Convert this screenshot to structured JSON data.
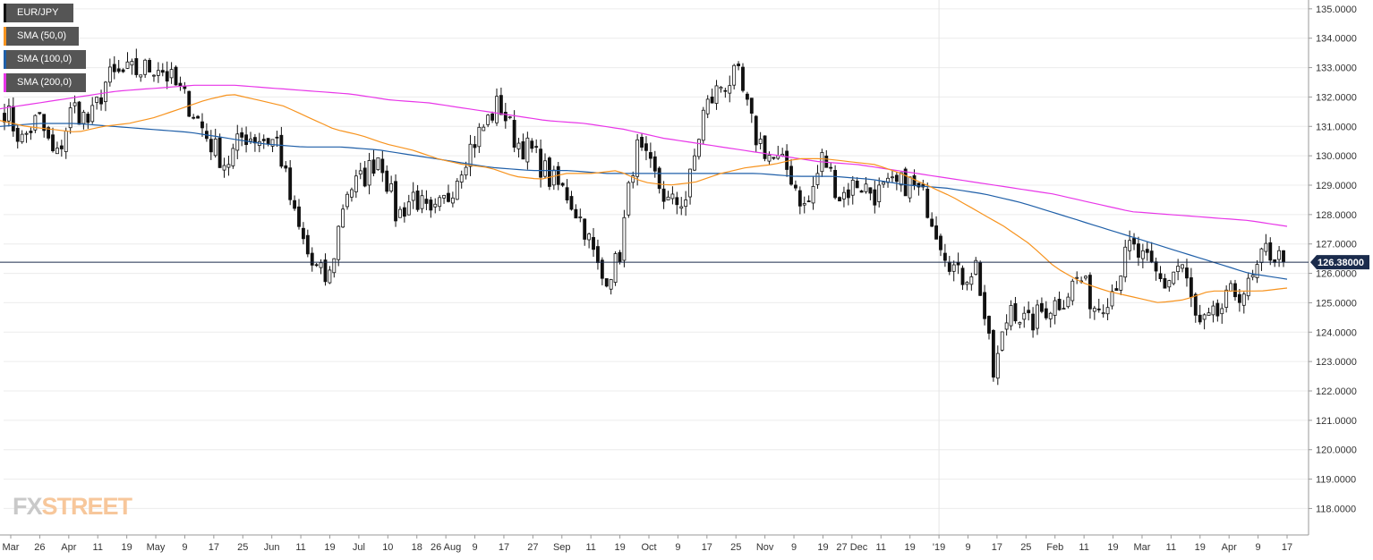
{
  "legend": [
    {
      "label": "EUR/JPY",
      "color": "#111111"
    },
    {
      "label": "SMA (50,0)",
      "color": "#f7931e"
    },
    {
      "label": "SMA (100,0)",
      "color": "#1f5fa8"
    },
    {
      "label": "SMA (200,0)",
      "color": "#e836e8"
    }
  ],
  "logo": {
    "fx": "FX",
    "street": "STREET"
  },
  "chart_data": {
    "type": "candlestick",
    "title": "",
    "instrument": "EUR/JPY",
    "current_price": "126.38000",
    "current_value": 126.38,
    "ylim": [
      117.1,
      135.3
    ],
    "y_ticks": [
      135,
      134,
      133,
      132,
      131,
      130,
      129,
      128,
      127,
      126,
      125,
      124,
      123,
      122,
      121,
      120,
      119,
      118
    ],
    "y_tick_labels": [
      "135.0000",
      "134.0000",
      "133.0000",
      "132.0000",
      "131.0000",
      "130.0000",
      "129.0000",
      "128.0000",
      "127.0000",
      "126.0000",
      "125.0000",
      "124.0000",
      "123.0000",
      "122.0000",
      "121.0000",
      "120.0000",
      "119.0000",
      "118.0000"
    ],
    "x_tick_labels": [
      "Mar",
      "26",
      "Apr",
      "11",
      "19",
      "May",
      "9",
      "17",
      "25",
      "Jun",
      "11",
      "19",
      "Jul",
      "10",
      "18",
      "26 Aug",
      "9",
      "17",
      "27",
      "Sep",
      "11",
      "19",
      "Oct",
      "9",
      "17",
      "25",
      "Nov",
      "9",
      "19",
      "27 Dec",
      "11",
      "19",
      "'19",
      "9",
      "17",
      "25",
      "Feb",
      "11",
      "19",
      "Mar",
      "11",
      "19",
      "Apr",
      "9",
      "17"
    ],
    "colors": {
      "up": "#ffffff",
      "down": "#111111",
      "sma50": "#f7931e",
      "sma100": "#1f5fa8",
      "sma200": "#e836e8",
      "price_line": "#1a2b4c"
    },
    "close_anchors": [
      131.6,
      130.5,
      131.3,
      129.8,
      131.7,
      131.1,
      132.6,
      132.8,
      132.9,
      133.1,
      132.4,
      131.6,
      130.5,
      129.7,
      130.7,
      130.6,
      130.5,
      127.9,
      126.3,
      125.7,
      128.8,
      129.2,
      130.1,
      127.9,
      128.7,
      127.8,
      128.6,
      130.0,
      130.9,
      131.8,
      130.5,
      130.1,
      129.2,
      128.7,
      127.6,
      125.8,
      126.4,
      130.3,
      129.4,
      128.3,
      128.6,
      131.5,
      132.4,
      132.7,
      130.7,
      129.9,
      129.5,
      128.1,
      130.0,
      128.6,
      129.1,
      128.7,
      128.9,
      129.1,
      128.5,
      127.0,
      125.8,
      126.3,
      122.5,
      125.0,
      124.2,
      124.8,
      125.1,
      125.9,
      124.8,
      125.5,
      126.9,
      126.3,
      125.6,
      126.4,
      124.1,
      124.5,
      125.3,
      125.5,
      126.8,
      126.4
    ],
    "sma50_anchors": [
      131.2,
      131.0,
      130.9,
      130.8,
      131.0,
      131.1,
      131.3,
      131.6,
      131.9,
      132.1,
      131.9,
      131.7,
      131.3,
      130.9,
      130.7,
      130.4,
      130.2,
      129.9,
      129.7,
      129.6,
      129.3,
      129.2,
      129.4,
      129.4,
      129.5,
      129.1,
      129.0,
      129.1,
      129.4,
      129.6,
      129.7,
      129.9,
      129.9,
      129.8,
      129.7,
      129.4,
      129.0,
      128.6,
      128.1,
      127.6,
      127.0,
      126.2,
      125.7,
      125.4,
      125.2,
      125.0,
      125.1,
      125.4,
      125.4,
      125.4,
      125.5
    ],
    "sma100_anchors": [
      131.0,
      131.1,
      131.1,
      131.0,
      130.9,
      130.8,
      130.6,
      130.4,
      130.3,
      130.3,
      130.2,
      130.0,
      129.8,
      129.6,
      129.5,
      129.5,
      129.4,
      129.4,
      129.4,
      129.4,
      129.4,
      129.3,
      129.3,
      129.2,
      129.0,
      128.9,
      128.7,
      128.4,
      128.0,
      127.6,
      127.2,
      126.8,
      126.4,
      126.0,
      125.8
    ],
    "sma200_anchors": [
      131.6,
      131.8,
      132.0,
      132.2,
      132.3,
      132.4,
      132.4,
      132.3,
      132.2,
      132.1,
      131.9,
      131.8,
      131.6,
      131.4,
      131.2,
      131.1,
      130.9,
      130.6,
      130.4,
      130.2,
      130.0,
      129.8,
      129.7,
      129.5,
      129.3,
      129.1,
      128.9,
      128.7,
      128.4,
      128.1,
      128.0,
      127.9,
      127.8,
      127.6
    ]
  }
}
